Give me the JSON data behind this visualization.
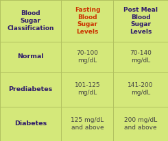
{
  "bg_color": "#d4e87a",
  "header_col1": "Blood\nSugar\nClassification",
  "header_col2": "Fasting\nBlood\nSugar\nLevels",
  "header_col3": "Post Meal\nBlood\nSugar\nLevels",
  "header_col1_color": "#2e1a6b",
  "header_col2_color": "#cc3300",
  "header_col3_color": "#2e1a6b",
  "rows": [
    {
      "label": "Normal",
      "fasting": "70-100\nmg/dL",
      "postmeal": "70-140\nmg/dL"
    },
    {
      "label": "Prediabetes",
      "fasting": "101-125\nmg/dL",
      "postmeal": "141-200\nmg/dL"
    },
    {
      "label": "Diabetes",
      "fasting": "125 mg/dL\nand above",
      "postmeal": "200 mg/dL\nand above"
    }
  ],
  "label_color": "#2e1a6b",
  "data_color": "#444444",
  "line_color": "#b0c060",
  "header_font_size": 6.5,
  "label_font_size": 6.8,
  "data_font_size": 6.5,
  "col_bounds": [
    0.0,
    0.365,
    0.675,
    1.0
  ],
  "row_bounds": [
    1.0,
    0.705,
    0.49,
    0.245,
    0.0
  ]
}
